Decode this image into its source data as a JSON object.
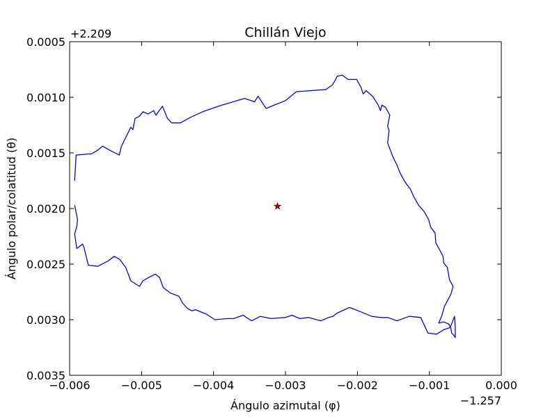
{
  "chart_data": {
    "type": "line",
    "title": "Chillán Viejo",
    "xlabel": "Ángulo azimutal (φ)",
    "ylabel": "Ángulo polar/colatitud (θ)",
    "x_offset_label": "−1.257",
    "y_offset_label": "+2.209",
    "xlim": [
      -0.006,
      0.0
    ],
    "ylim": [
      0.0035,
      0.0005
    ],
    "y_inverted": true,
    "xticks": [
      -0.006,
      -0.005,
      -0.004,
      -0.003,
      -0.002,
      -0.001,
      0.0
    ],
    "xtick_labels": [
      "−0.006",
      "−0.005",
      "−0.004",
      "−0.003",
      "−0.002",
      "−0.001",
      "0.000"
    ],
    "yticks": [
      0.0005,
      0.001,
      0.0015,
      0.002,
      0.0025,
      0.003,
      0.0035
    ],
    "ytick_labels": [
      "0.0005",
      "0.0010",
      "0.0015",
      "0.0020",
      "0.0025",
      "0.0030",
      "0.0035"
    ],
    "grid": false,
    "series": [
      {
        "color": "#0000ff",
        "x": [
          -0.00593,
          -0.00591,
          -0.00575,
          -0.0057,
          -0.00562,
          -0.00554,
          -0.00546,
          -0.00531,
          -0.00528,
          -0.00515,
          -0.00512,
          -0.00509,
          -0.00503,
          -0.00498,
          -0.00491,
          -0.00483,
          -0.0048,
          -0.00471,
          -0.00464,
          -0.00458,
          -0.00446,
          -0.00432,
          -0.00415,
          -0.00393,
          -0.00357,
          -0.00343,
          -0.00338,
          -0.00327,
          -0.003,
          -0.00285,
          -0.00244,
          -0.00235,
          -0.00232,
          -0.00228,
          -0.00221,
          -0.00213,
          -0.00207,
          -0.00201,
          -0.00195,
          -0.00192,
          -0.00188,
          -0.00179,
          -0.00171,
          -0.00168,
          -0.00166,
          -0.00161,
          -0.00155,
          -0.00158,
          -0.00156,
          -0.00158,
          -0.00151,
          -0.00145,
          -0.0014,
          -0.00134,
          -0.00126,
          -0.00122,
          -0.00115,
          -0.00107,
          -0.00101,
          -0.00098,
          -0.00092,
          -0.00091,
          -0.00085,
          -0.00081,
          -0.0008,
          -0.00075,
          -0.00072,
          -0.00067,
          -0.0007,
          -0.00079,
          -0.00083,
          -0.00087,
          -0.0008,
          -0.00073,
          -0.0007,
          -0.00069,
          -0.00066,
          -0.00064,
          -0.00064,
          -0.00065,
          -0.00071,
          -0.0008,
          -0.0009,
          -0.00102,
          -0.00112,
          -0.00128,
          -0.00145,
          -0.00158,
          -0.00168,
          -0.0018,
          -0.00195,
          -0.00211,
          -0.00228,
          -0.00234,
          -0.0024,
          -0.00251,
          -0.00268,
          -0.0028,
          -0.00291,
          -0.003,
          -0.0032,
          -0.00335,
          -0.00347,
          -0.00359,
          -0.00372,
          -0.00381,
          -0.00398,
          -0.0041,
          -0.00425,
          -0.0043,
          -0.00436,
          -0.00443,
          -0.00448,
          -0.0046,
          -0.0047,
          -0.00475,
          -0.00481,
          -0.0049,
          -0.00498,
          -0.00503,
          -0.00515,
          -0.00522,
          -0.0053,
          -0.00538,
          -0.00546,
          -0.00561,
          -0.00574,
          -0.0058,
          -0.00582,
          -0.0059,
          -0.00593,
          -0.0059,
          -0.00589,
          -0.00593
        ],
        "y": [
          0.00175,
          0.00152,
          0.00151,
          0.00151,
          0.00148,
          0.00144,
          0.00147,
          0.00152,
          0.00144,
          0.00127,
          0.00129,
          0.00119,
          0.00117,
          0.00113,
          0.00115,
          0.00112,
          0.00116,
          0.00108,
          0.00119,
          0.00123,
          0.00123,
          0.00118,
          0.00113,
          0.00108,
          0.00101,
          0.00104,
          0.00099,
          0.0011,
          0.00103,
          0.00095,
          0.00093,
          0.00089,
          0.00086,
          0.00081,
          0.0008,
          0.00084,
          0.00084,
          0.00084,
          0.00091,
          0.00097,
          0.00094,
          0.00099,
          0.00107,
          0.00112,
          0.00107,
          0.00109,
          0.00116,
          0.00126,
          0.0013,
          0.00141,
          0.00153,
          0.00161,
          0.00169,
          0.00176,
          0.00183,
          0.00189,
          0.00197,
          0.00203,
          0.0021,
          0.00217,
          0.00222,
          0.00231,
          0.00238,
          0.00243,
          0.00249,
          0.00253,
          0.00264,
          0.0027,
          0.00277,
          0.00288,
          0.00297,
          0.00303,
          0.00302,
          0.00304,
          0.00308,
          0.00312,
          0.00314,
          0.00316,
          0.00306,
          0.00297,
          0.00307,
          0.00309,
          0.00313,
          0.00312,
          0.00298,
          0.00297,
          0.00301,
          0.00298,
          0.00298,
          0.00297,
          0.00293,
          0.00289,
          0.00294,
          0.00297,
          0.00298,
          0.00301,
          0.00298,
          0.00299,
          0.00296,
          0.00298,
          0.00299,
          0.00297,
          0.00301,
          0.00296,
          0.00299,
          0.00299,
          0.003,
          0.00295,
          0.00291,
          0.00292,
          0.0029,
          0.00285,
          0.00279,
          0.00276,
          0.00271,
          0.00262,
          0.00259,
          0.00262,
          0.00265,
          0.0027,
          0.00265,
          0.00253,
          0.00246,
          0.00243,
          0.00247,
          0.00252,
          0.00251,
          0.00235,
          0.00232,
          0.00236,
          0.00223,
          0.00216,
          0.0021,
          0.00197
        ]
      }
    ],
    "markers": [
      {
        "x": -0.00311,
        "y": 0.00198,
        "symbol": "star",
        "color": "#cc0000"
      }
    ]
  }
}
